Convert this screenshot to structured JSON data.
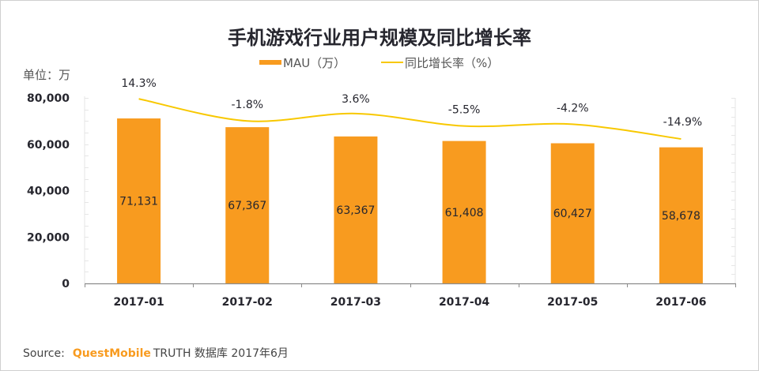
{
  "chart_data": {
    "type": "bar",
    "title": "手机游戏行业用户规模及同比增长率",
    "unit_label": "单位：万",
    "categories": [
      "2017-01",
      "2017-02",
      "2017-03",
      "2017-04",
      "2017-05",
      "2017-06"
    ],
    "series": [
      {
        "name": "MAU（万）",
        "type": "bar",
        "axis": "left",
        "color": "#f89b1f",
        "values": [
          71131,
          67367,
          63367,
          61408,
          60427,
          58678
        ],
        "labels": [
          "71,131",
          "67,367",
          "63,367",
          "61,408",
          "60,427",
          "58,678"
        ]
      },
      {
        "name": "同比增长率（%）",
        "type": "line",
        "axis": "right",
        "color": "#f8c800",
        "values": [
          14.3,
          -1.8,
          3.6,
          -5.5,
          -4.2,
          -14.9
        ],
        "labels": [
          "14.3%",
          "-1.8%",
          "3.6%",
          "-5.5%",
          "-4.2%",
          "-14.9%"
        ]
      }
    ],
    "ylim": [
      0,
      80000
    ],
    "yticks": [
      0,
      20000,
      40000,
      60000,
      80000
    ],
    "ytick_labels": [
      "0",
      "20,000",
      "40,000",
      "60,000",
      "80,000"
    ],
    "y2lim": [
      -120,
      15
    ],
    "xlabel": "",
    "ylabel": "",
    "grid": false,
    "legend": "top-center"
  },
  "source": {
    "prefix": "Source:",
    "brand": "QuestMobile",
    "text": "TRUTH 数据库 2017年6月"
  }
}
